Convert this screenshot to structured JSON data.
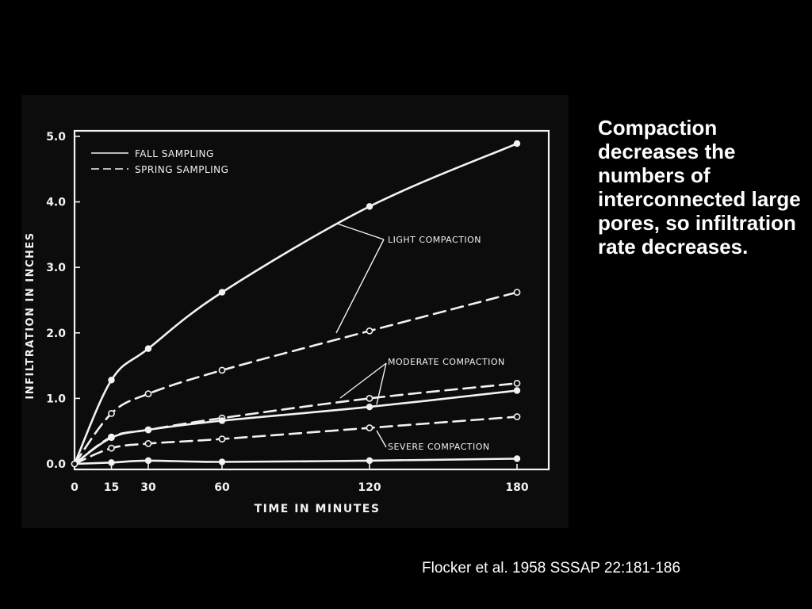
{
  "slide": {
    "text": "Compaction decreases the numbers of interconnected large pores, so infiltration rate decreases.",
    "citation": "Flocker et al. 1958  SSSAP 22:181-186"
  },
  "colors": {
    "background": "#000000",
    "chart_panel": "#0c0c0c",
    "ink": "#f2f2f2"
  },
  "chart_data": {
    "type": "line",
    "title": "",
    "xlabel": "TIME  IN  MINUTES",
    "ylabel": "INFILTRATION  IN  INCHES",
    "xlim": [
      0,
      180
    ],
    "ylim": [
      0,
      5
    ],
    "xticks": [
      0,
      15,
      30,
      60,
      120,
      180
    ],
    "xtick_labels": [
      "0",
      "15",
      "30",
      "60",
      "120",
      "180"
    ],
    "yticks": [
      0,
      1,
      2,
      3,
      4,
      5
    ],
    "ytick_labels": [
      "0.0",
      "1.0",
      "2.0",
      "3.0",
      "4.0",
      "5.0"
    ],
    "grid": false,
    "legend": {
      "placement": "top-left",
      "entries": [
        {
          "label": "FALL SAMPLING",
          "style": "solid"
        },
        {
          "label": "SPRING SAMPLING",
          "style": "dashed"
        }
      ]
    },
    "annotations": [
      {
        "text": "LIGHT  COMPACTION",
        "series": [
          "light-fall",
          "light-spring"
        ]
      },
      {
        "text": "MODERATE  COMPACTION",
        "series": [
          "moderate-spring",
          "moderate-fall"
        ]
      },
      {
        "text": "SEVERE  COMPACTION",
        "series": [
          "severe-spring"
        ]
      }
    ],
    "series": [
      {
        "id": "light-fall",
        "style": "solid",
        "marker": "filled",
        "x": [
          0,
          15,
          30,
          60,
          120,
          180
        ],
        "y": [
          0,
          1.28,
          1.76,
          2.62,
          3.93,
          4.89
        ]
      },
      {
        "id": "light-spring",
        "style": "dashed",
        "marker": "open",
        "x": [
          0,
          15,
          30,
          60,
          120,
          180
        ],
        "y": [
          0,
          0.77,
          1.07,
          1.43,
          2.03,
          2.62
        ]
      },
      {
        "id": "moderate-spring",
        "style": "dashed",
        "marker": "open",
        "x": [
          0,
          15,
          30,
          60,
          120,
          180
        ],
        "y": [
          0,
          0.41,
          0.52,
          0.7,
          1.0,
          1.23
        ]
      },
      {
        "id": "moderate-fall",
        "style": "solid",
        "marker": "filled",
        "x": [
          0,
          15,
          30,
          60,
          120,
          180
        ],
        "y": [
          0,
          0.4,
          0.52,
          0.66,
          0.87,
          1.12
        ]
      },
      {
        "id": "severe-spring",
        "style": "dashed",
        "marker": "open",
        "x": [
          0,
          15,
          30,
          60,
          120,
          180
        ],
        "y": [
          0,
          0.24,
          0.31,
          0.38,
          0.55,
          0.72
        ]
      },
      {
        "id": "severe-fall",
        "style": "solid",
        "marker": "filled",
        "x": [
          0,
          15,
          30,
          60,
          120,
          180
        ],
        "y": [
          0,
          0.02,
          0.05,
          0.03,
          0.05,
          0.08
        ]
      }
    ]
  }
}
